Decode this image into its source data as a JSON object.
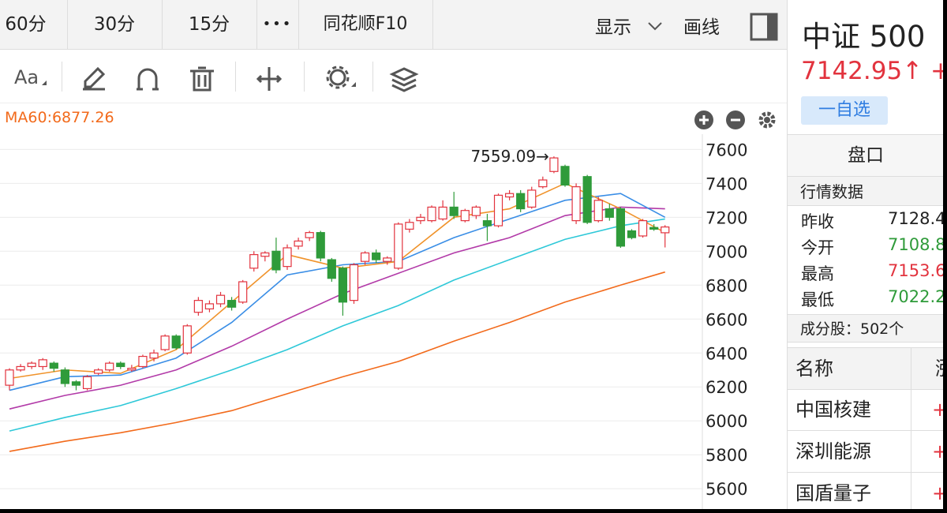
{
  "toolbar": {
    "periods": [
      "60分",
      "30分",
      "15分"
    ],
    "more": "•••",
    "f10": "同花顺F10",
    "display": "显示",
    "draw": "画线"
  },
  "indicator_label": "MA60:6877.26",
  "chart": {
    "type": "candlestick",
    "annotation": "7559.09→",
    "ylim": [
      5480,
      7690
    ],
    "yticks": [
      5600,
      5800,
      6000,
      6200,
      6400,
      6600,
      6800,
      7000,
      7200,
      7400,
      7600
    ],
    "grid": true,
    "up_color": "#e2333e",
    "down_color": "#2f9b3a",
    "open": [
      6210,
      6300,
      6320,
      6320,
      6340,
      6300,
      6230,
      6190,
      6280,
      6300,
      6340,
      6300,
      6320,
      6370,
      6420,
      6500,
      6400,
      6640,
      6660,
      6690,
      6710,
      6700,
      6900,
      6970,
      7000,
      6910,
      7030,
      7080,
      7110,
      6950,
      6900,
      6710,
      6940,
      6990,
      6940,
      6900,
      7130,
      7180,
      7180,
      7190,
      7260,
      7180,
      7210,
      7180,
      7150,
      7320,
      7340,
      7260,
      7380,
      7470,
      7500,
      7180,
      7440,
      7180,
      7250,
      7250,
      7120,
      7090,
      7140,
      7108.8
    ],
    "close": [
      6300,
      6320,
      6340,
      6360,
      6310,
      6220,
      6210,
      6260,
      6300,
      6340,
      6320,
      6310,
      6380,
      6400,
      6500,
      6430,
      6560,
      6710,
      6690,
      6740,
      6670,
      6820,
      6980,
      6990,
      6890,
      7020,
      7060,
      7110,
      6960,
      6840,
      6700,
      6920,
      6990,
      6950,
      6960,
      7160,
      7170,
      7200,
      7260,
      7260,
      7210,
      7240,
      7260,
      7150,
      7330,
      7340,
      7250,
      7360,
      7420,
      7550,
      7390,
      7380,
      7170,
      7300,
      7200,
      7030,
      7080,
      7180,
      7130,
      7142.95
    ],
    "high": [
      6310,
      6335,
      6350,
      6370,
      6350,
      6315,
      6240,
      6270,
      6310,
      6350,
      6350,
      6330,
      6390,
      6420,
      6510,
      6510,
      6570,
      6730,
      6710,
      6760,
      6730,
      6830,
      7000,
      7000,
      7080,
      7040,
      7080,
      7120,
      7120,
      6960,
      6910,
      6930,
      7000,
      7010,
      6970,
      7170,
      7190,
      7220,
      7270,
      7300,
      7350,
      7250,
      7270,
      7220,
      7340,
      7360,
      7360,
      7380,
      7440,
      7559.09,
      7510,
      7400,
      7450,
      7320,
      7280,
      7260,
      7130,
      7190,
      7160,
      7153.6
    ],
    "low": [
      6180,
      6290,
      6305,
      6300,
      6290,
      6200,
      6180,
      6180,
      6270,
      6290,
      6305,
      6290,
      6310,
      6350,
      6410,
      6420,
      6390,
      6620,
      6640,
      6670,
      6650,
      6690,
      6880,
      6940,
      6870,
      6890,
      7010,
      7060,
      6940,
      6820,
      6620,
      6690,
      6920,
      6930,
      6920,
      6890,
      7110,
      7160,
      7170,
      7180,
      7190,
      7170,
      7190,
      7060,
      7140,
      7300,
      7230,
      7250,
      7370,
      7460,
      7380,
      7160,
      7160,
      7170,
      7180,
      7020,
      7070,
      7080,
      7120,
      7022.2
    ],
    "ma_x": [
      0,
      5,
      10,
      15,
      20,
      25,
      30,
      35,
      40,
      45,
      50,
      55,
      59
    ],
    "ma_series": [
      {
        "color": "#f26a1b",
        "values": [
          5820,
          5880,
          5930,
          5990,
          6060,
          6160,
          6260,
          6350,
          6470,
          6580,
          6700,
          6800,
          6877.26
        ]
      },
      {
        "color": "#2ec8d8",
        "values": [
          5940,
          6020,
          6090,
          6190,
          6300,
          6420,
          6560,
          6680,
          6830,
          6950,
          7070,
          7150,
          7190
        ]
      },
      {
        "color": "#b23aa8",
        "values": [
          6070,
          6150,
          6210,
          6300,
          6440,
          6600,
          6750,
          6870,
          6990,
          7080,
          7210,
          7260,
          7250
        ]
      },
      {
        "color": "#3a8ee6",
        "values": [
          6180,
          6260,
          6270,
          6370,
          6580,
          6860,
          6920,
          6940,
          7080,
          7190,
          7300,
          7340,
          7200
        ]
      },
      {
        "color": "#f0932b",
        "values": [
          6250,
          6300,
          6280,
          6420,
          6700,
          6980,
          6900,
          6940,
          7200,
          7250,
          7400,
          7250,
          7110
        ]
      }
    ]
  },
  "quote": {
    "name": "中证 500",
    "price": "7142.95↑",
    "change": "+",
    "watch": "一自选"
  },
  "panel": {
    "tab": "盘口",
    "section": "行情数据",
    "rows": [
      {
        "label": "昨收",
        "value": "7128.4",
        "color": "#222222"
      },
      {
        "label": "今开",
        "value": "7108.8",
        "color": "#2f9b3a"
      },
      {
        "label": "最高",
        "value": "7153.6",
        "color": "#e2333e"
      },
      {
        "label": "最低",
        "value": "7022.2",
        "color": "#2f9b3a"
      }
    ],
    "constituents": "成分股：502个",
    "table": {
      "header": [
        "名称",
        "涨"
      ],
      "rows": [
        [
          "中国核建",
          "+"
        ],
        [
          "深圳能源",
          "+"
        ],
        [
          "国盾量子",
          "+"
        ]
      ]
    }
  }
}
